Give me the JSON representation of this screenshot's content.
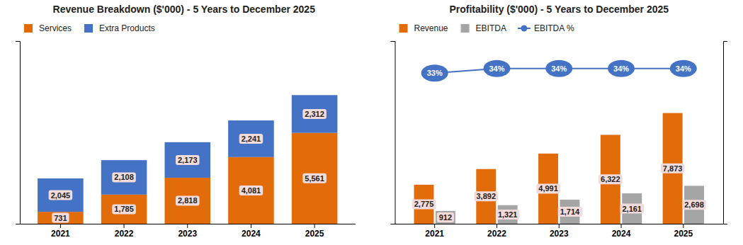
{
  "chart_data": [
    {
      "type": "bar",
      "title": "Revenue Breakdown ($'000) - 5 Years to December 2025",
      "categories": [
        "2021",
        "2022",
        "2023",
        "2024",
        "2025"
      ],
      "stacked": true,
      "series": [
        {
          "name": "Services",
          "color": "#E36C0A",
          "values": [
            731,
            1785,
            2818,
            4081,
            5561
          ],
          "value_labels": [
            "731",
            "1,785",
            "2,818",
            "4,081",
            "5,561"
          ]
        },
        {
          "name": "Extra Products",
          "color": "#4472C4",
          "values": [
            2045,
            2108,
            2173,
            2241,
            2312
          ],
          "value_labels": [
            "2,045",
            "2,108",
            "2,173",
            "2,241",
            "2,312"
          ]
        }
      ],
      "ylim": [
        0,
        11179.66
      ],
      "tick_labels": "x",
      "data_labels": true,
      "legend": "upper left",
      "grid": false
    },
    {
      "type": "bar",
      "title": "Profitability ($'000) - 5 Years to December 2025",
      "categories": [
        "2021",
        "2022",
        "2023",
        "2024",
        "2025"
      ],
      "series": [
        {
          "name": "Revenue",
          "color": "#E36C0A",
          "values": [
            2775,
            3892,
            4991,
            6322,
            7873
          ],
          "value_labels": [
            "2,775",
            "3,892",
            "4,991",
            "6,322",
            "7,873"
          ]
        },
        {
          "name": "EBITDA",
          "color": "#A5A5A5",
          "values": [
            912,
            1321,
            1714,
            2161,
            2698
          ],
          "value_labels": [
            "912",
            "1,321",
            "1,714",
            "2,161",
            "2,698"
          ]
        },
        {
          "name": "EBITDA %",
          "type": "line",
          "axis": "y2",
          "color": "#4472C4",
          "marker": "circle",
          "values": [
            33,
            34,
            34,
            34,
            34
          ],
          "value_labels": [
            "33%",
            "34%",
            "34%",
            "34%",
            "34%"
          ]
        }
      ],
      "ylim": [
        0,
        12990.45
      ],
      "y2lim": [
        0,
        40
      ],
      "tick_labels": "x",
      "data_labels": true,
      "legend": "upper left",
      "grid": false
    }
  ]
}
